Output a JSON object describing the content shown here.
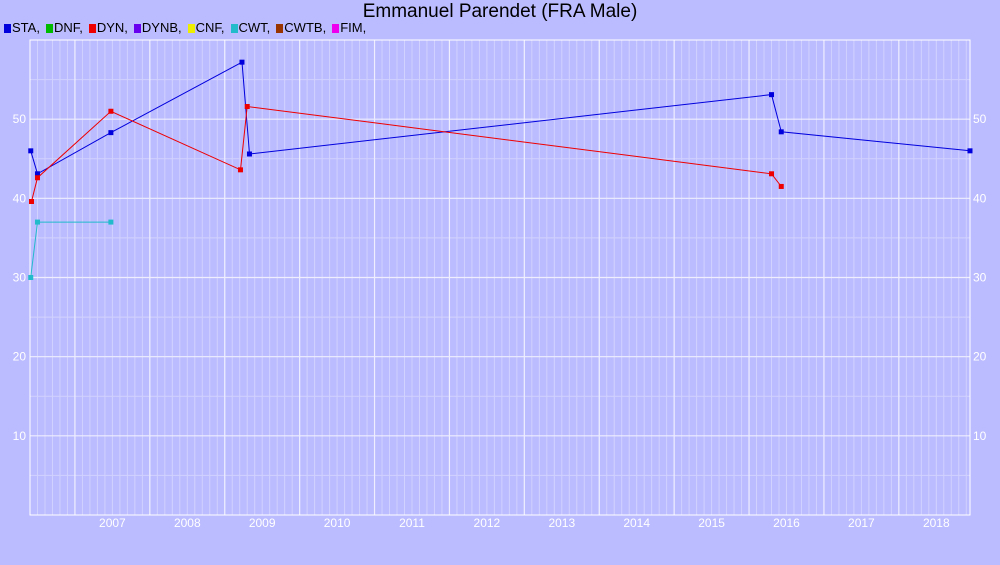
{
  "chart_data": {
    "type": "line",
    "title": "Emmanuel Parendet (FRA Male)",
    "xlabel": "",
    "ylabel": "",
    "xlim": [
      2006.4,
      2018.95
    ],
    "ylim": [
      0,
      60
    ],
    "x_ticks": [
      "2007",
      "2008",
      "2009",
      "2010",
      "2011",
      "2012",
      "2013",
      "2014",
      "2015",
      "2016",
      "2017",
      "2018"
    ],
    "y_ticks": [
      "10",
      "20",
      "30",
      "40",
      "50"
    ],
    "grid": true,
    "legend_position": "top-left",
    "legend": [
      {
        "label": "STA,",
        "color": "#0000dd"
      },
      {
        "label": "DNF,",
        "color": "#00bb00"
      },
      {
        "label": "DYN,",
        "color": "#ee0000"
      },
      {
        "label": "DYNB,",
        "color": "#6600ee"
      },
      {
        "label": "CNF,",
        "color": "#eeee00"
      },
      {
        "label": "CWT,",
        "color": "#22bbcc"
      },
      {
        "label": "CWTB,",
        "color": "#993300"
      },
      {
        "label": "FIM,",
        "color": "#ee00ee"
      }
    ],
    "series": [
      {
        "name": "STA",
        "color": "#0000dd",
        "points": [
          [
            2006.41,
            46.0
          ],
          [
            2006.5,
            43.1
          ],
          [
            2007.48,
            48.3
          ],
          [
            2009.23,
            57.2
          ],
          [
            2009.33,
            45.6
          ],
          [
            2016.3,
            53.1
          ],
          [
            2016.43,
            48.4
          ],
          [
            2018.95,
            46.0
          ]
        ]
      },
      {
        "name": "DYN",
        "color": "#ee0000",
        "points": [
          [
            2006.42,
            39.6
          ],
          [
            2006.5,
            42.6
          ],
          [
            2007.48,
            51.0
          ],
          [
            2009.21,
            43.6
          ],
          [
            2009.3,
            51.6
          ],
          [
            2016.3,
            43.1
          ],
          [
            2016.43,
            41.5
          ]
        ]
      },
      {
        "name": "CWT",
        "color": "#22bbcc",
        "points": [
          [
            2006.41,
            30.0
          ],
          [
            2006.5,
            37.0
          ],
          [
            2007.48,
            37.0
          ]
        ]
      }
    ]
  }
}
